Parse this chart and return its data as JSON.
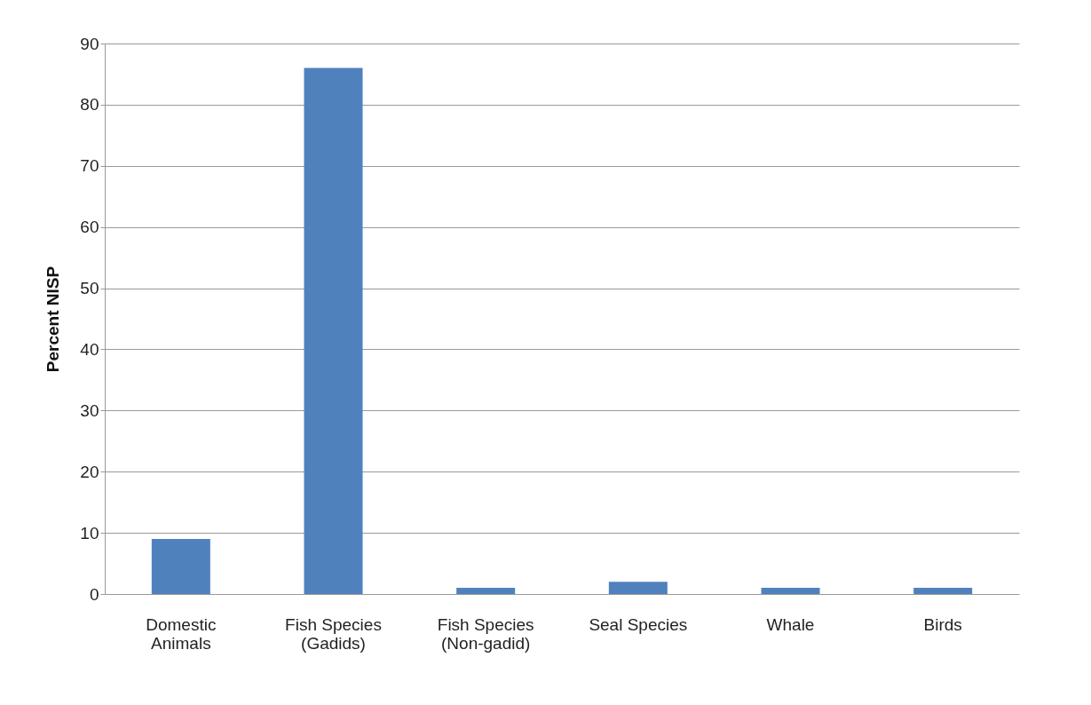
{
  "chart_data": {
    "type": "bar",
    "ylabel": "Percent NISP",
    "categories": [
      "Domestic\nAnimals",
      "Fish Species\n(Gadids)",
      "Fish Species\n(Non-gadid)",
      "Seal Species",
      "Whale",
      "Birds"
    ],
    "values": [
      9,
      86,
      1,
      2,
      1,
      1
    ],
    "color": "#4f81bd",
    "ylim": [
      0,
      90
    ],
    "yticks": [
      0,
      10,
      20,
      30,
      40,
      50,
      60,
      70,
      80,
      90
    ],
    "grid": "y"
  }
}
